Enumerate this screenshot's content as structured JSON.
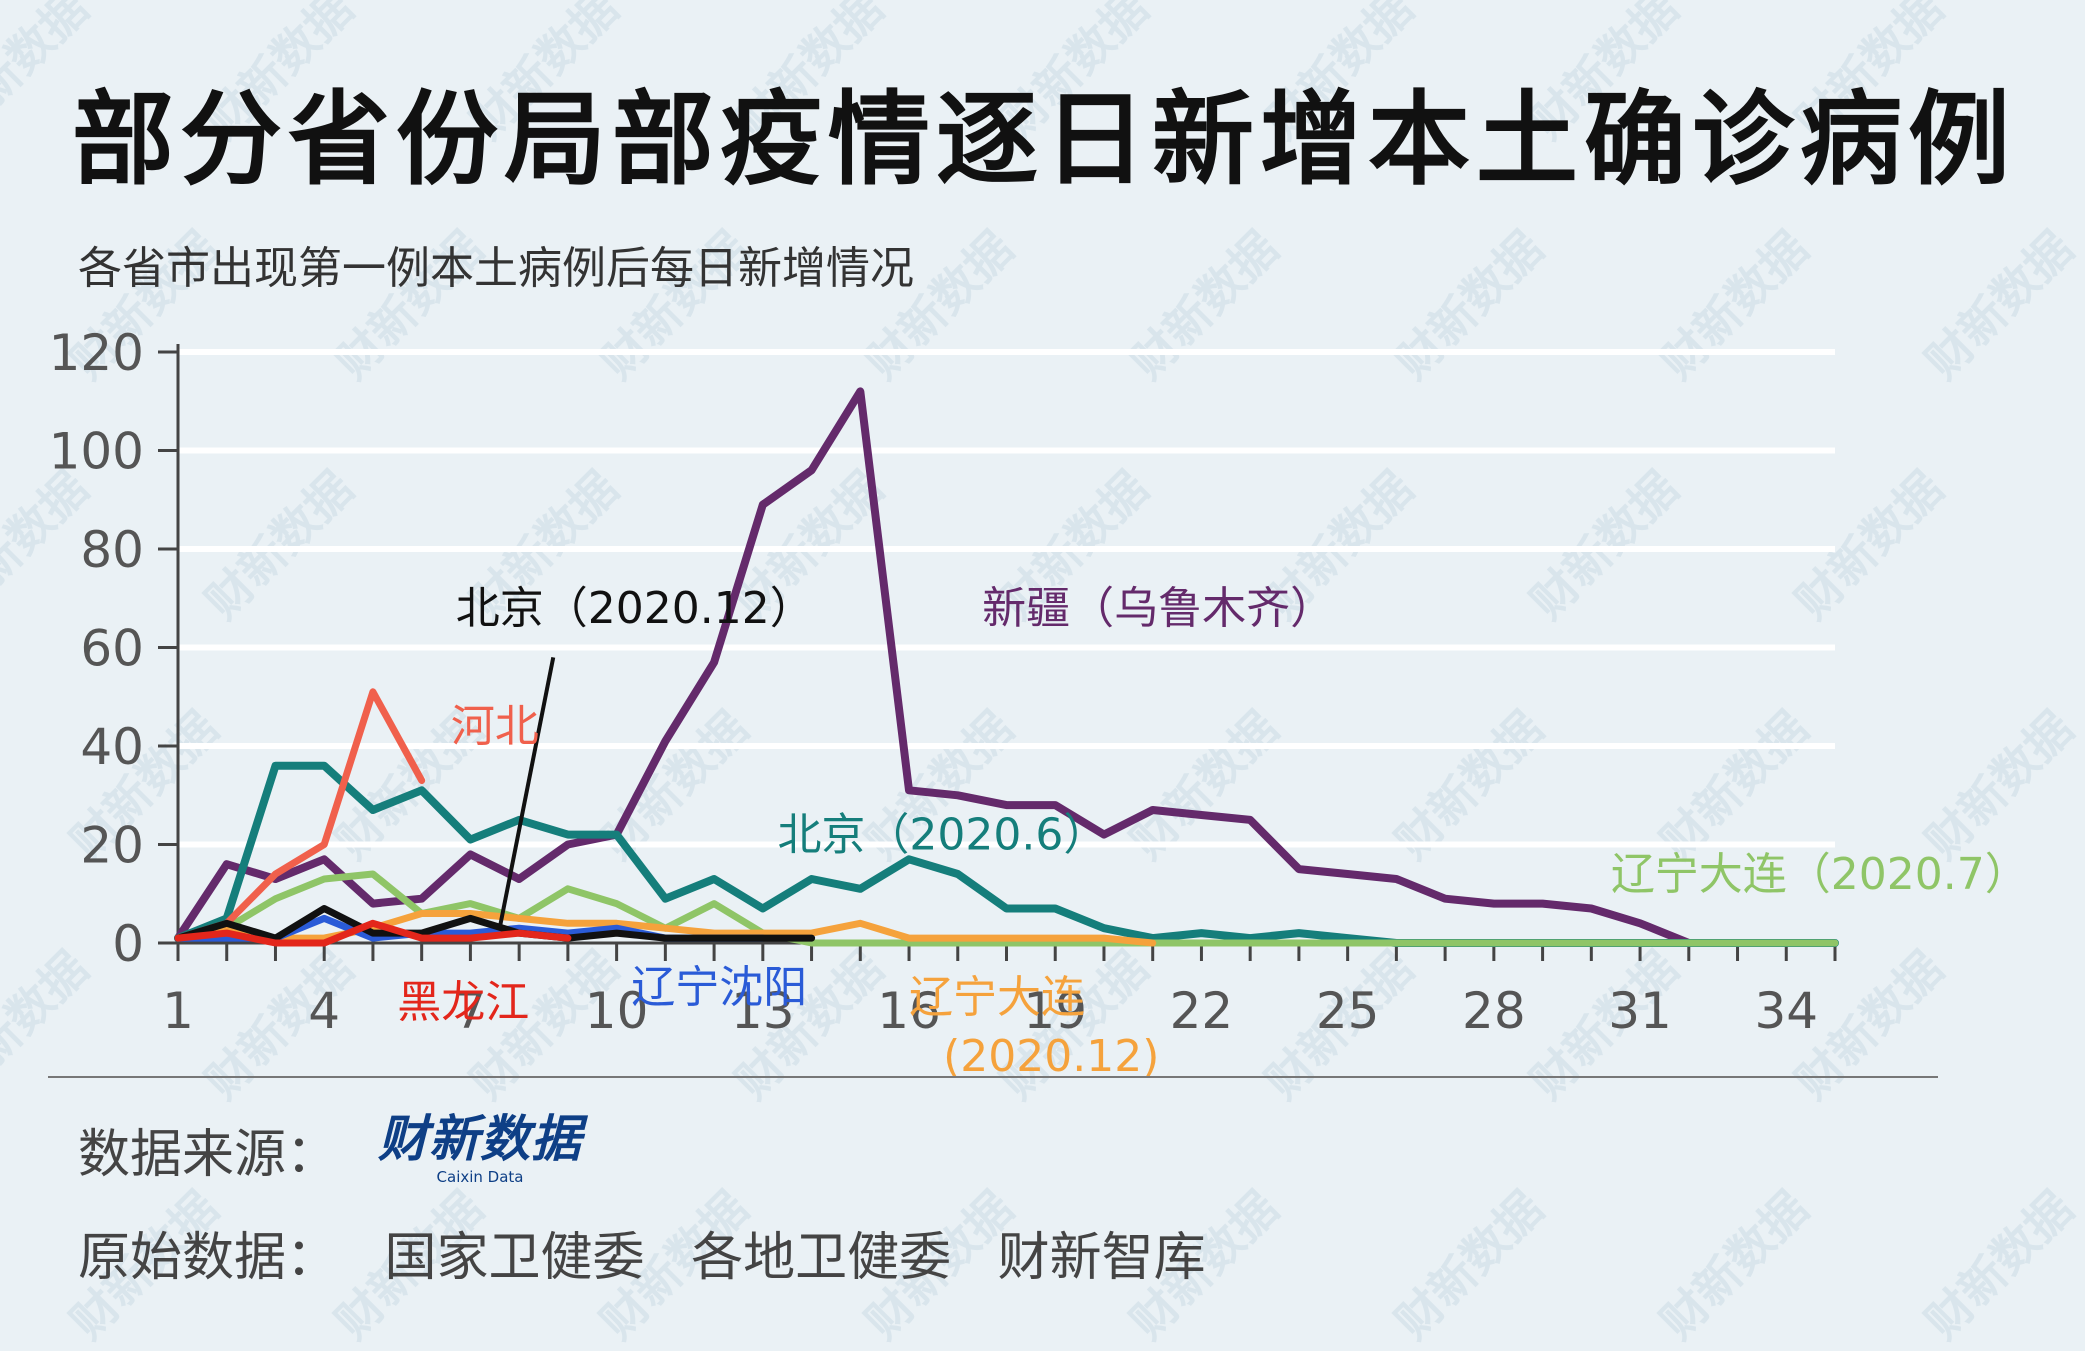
{
  "title": "部分省份局部疫情逐日新增本土确诊病例",
  "subtitle": "各省市出现第一例本土病例后每日新增情况",
  "source": {
    "label": "数据来源：",
    "logo_text": "财新数据",
    "logo_sub": "Caixin Data"
  },
  "raw_data": {
    "label": "原始数据：",
    "sources": [
      "国家卫健委",
      "各地卫健委",
      "财新智库"
    ]
  },
  "watermark": "财新数据",
  "colors": {
    "xinjiang": "#642a6b",
    "beijing_jun": "#157e7b",
    "hebei": "#f0604c",
    "beijing_dec": "#111111",
    "heilongjiang": "#e3261b",
    "liaoning_shenyang": "#2a5bd7",
    "dalian_dec": "#f5a23c",
    "dalian_jul": "#8fc567"
  },
  "chart_data": {
    "type": "line",
    "title": "部分省份局部疫情逐日新增本土确诊病例",
    "subtitle": "各省市出现第一例本土病例后每日新增情况",
    "xlabel": "",
    "ylabel": "",
    "xlim": [
      1,
      35
    ],
    "ylim": [
      0,
      120
    ],
    "xticks": [
      1,
      4,
      7,
      10,
      13,
      16,
      19,
      22,
      25,
      28,
      31,
      34
    ],
    "yticks": [
      0,
      20,
      40,
      60,
      80,
      100,
      120
    ],
    "grid": "horizontal",
    "series": [
      {
        "key": "xinjiang",
        "name": "新疆（乌鲁木齐）",
        "x": [
          1,
          2,
          3,
          4,
          5,
          6,
          7,
          8,
          9,
          10,
          11,
          12,
          13,
          14,
          15,
          16,
          17,
          18,
          19,
          20,
          21,
          22,
          23,
          24,
          25,
          26,
          27,
          28,
          29,
          30,
          31,
          32
        ],
        "values": [
          1,
          16,
          13,
          17,
          8,
          9,
          18,
          13,
          20,
          22,
          41,
          57,
          89,
          96,
          112,
          31,
          30,
          28,
          28,
          22,
          27,
          26,
          25,
          15,
          14,
          13,
          9,
          8,
          8,
          7,
          4,
          0
        ]
      },
      {
        "key": "beijing_jun",
        "name": "北京（2020.6）",
        "x": [
          1,
          2,
          3,
          4,
          5,
          6,
          7,
          8,
          9,
          10,
          11,
          12,
          13,
          14,
          15,
          16,
          17,
          18,
          19,
          20,
          21,
          22,
          23,
          24,
          25,
          26,
          27,
          28,
          29,
          30,
          31,
          32,
          33,
          34,
          35
        ],
        "values": [
          1,
          5,
          36,
          36,
          27,
          31,
          21,
          25,
          22,
          22,
          9,
          13,
          7,
          13,
          11,
          17,
          14,
          7,
          7,
          3,
          1,
          2,
          1,
          2,
          1,
          0,
          0,
          0,
          0,
          0,
          0,
          0,
          0,
          0,
          0
        ]
      },
      {
        "key": "hebei",
        "name": "河北",
        "x": [
          1,
          2,
          3,
          4,
          5,
          6
        ],
        "values": [
          1,
          4,
          14,
          20,
          51,
          33
        ]
      },
      {
        "key": "beijing_dec",
        "name": "北京（2020.12）",
        "x": [
          1,
          2,
          3,
          4,
          5,
          6,
          7,
          8,
          9,
          10,
          11,
          12,
          13,
          14
        ],
        "values": [
          1,
          4,
          1,
          7,
          2,
          2,
          5,
          2,
          1,
          2,
          1,
          1,
          1,
          1
        ]
      },
      {
        "key": "heilongjiang",
        "name": "黑龙江",
        "x": [
          1,
          2,
          3,
          4,
          5,
          6,
          7,
          8,
          9
        ],
        "values": [
          1,
          2,
          0,
          0,
          4,
          1,
          1,
          2,
          1
        ]
      },
      {
        "key": "liaoning_shenyang",
        "name": "辽宁沈阳",
        "x": [
          1,
          2,
          3,
          4,
          5,
          6,
          7,
          8,
          9,
          10,
          11,
          12,
          13
        ],
        "values": [
          1,
          1,
          1,
          5,
          1,
          2,
          2,
          3,
          2,
          3,
          1,
          1,
          1
        ]
      },
      {
        "key": "dalian_dec",
        "name": "辽宁大连（2020.12）",
        "x": [
          1,
          2,
          3,
          4,
          5,
          6,
          7,
          8,
          9,
          10,
          11,
          12,
          13,
          14,
          15,
          16,
          17,
          18,
          19,
          20,
          21
        ],
        "values": [
          1,
          3,
          1,
          1,
          3,
          6,
          6,
          5,
          4,
          4,
          3,
          2,
          2,
          2,
          4,
          1,
          1,
          1,
          1,
          1,
          0
        ]
      },
      {
        "key": "dalian_jul",
        "name": "辽宁大连（2020.7）",
        "x": [
          1,
          2,
          3,
          4,
          5,
          6,
          7,
          8,
          9,
          10,
          11,
          12,
          13,
          14,
          15,
          16,
          17,
          18,
          19,
          20,
          21,
          22,
          23,
          24,
          25,
          26,
          27,
          28,
          29,
          30,
          31,
          32,
          33,
          34,
          35
        ],
        "values": [
          1,
          3,
          9,
          13,
          14,
          6,
          8,
          5,
          11,
          8,
          3,
          8,
          2,
          0,
          0,
          0,
          0,
          0,
          0,
          0,
          0,
          0,
          0,
          0,
          0,
          0,
          0,
          0,
          0,
          0,
          0,
          0,
          0,
          0,
          0
        ]
      }
    ],
    "annotations": [
      {
        "text": "北京（2020.12）",
        "series": "beijing_dec",
        "color": "#111111",
        "x": 6.7,
        "y": 65,
        "leader_from": [
          8.7,
          58
        ],
        "leader_to": [
          7.6,
          3
        ]
      },
      {
        "text": "河北",
        "series": "hebei",
        "color": "#f0604c",
        "x": 6.6,
        "y": 41
      },
      {
        "text": "新疆（乌鲁木齐）",
        "series": "xinjiang",
        "color": "#642a6b",
        "x": 17.5,
        "y": 65
      },
      {
        "text": "北京（2020.6）",
        "series": "beijing_jun",
        "color": "#157e7b",
        "x": 13.3,
        "y": 19
      },
      {
        "text": "辽宁大连（2020.7）",
        "series": "dalian_jul",
        "color": "#8fc567",
        "x": 30.4,
        "y": 11
      },
      {
        "text": "黑龙江",
        "series": "heilongjiang",
        "color": "#e3261b",
        "x": 5.5,
        "y": -15
      },
      {
        "text": "辽宁沈阳",
        "series": "liaoning_shenyang",
        "color": "#2a5bd7",
        "x": 10.3,
        "y": -12
      },
      {
        "text": "辽宁大连",
        "series": "dalian_dec",
        "color": "#f5a23c",
        "x": 16.0,
        "y": -14
      },
      {
        "text": "(2020.12)",
        "series": "dalian_dec",
        "color": "#f5a23c",
        "x": 16.7,
        "y": -26
      }
    ]
  }
}
